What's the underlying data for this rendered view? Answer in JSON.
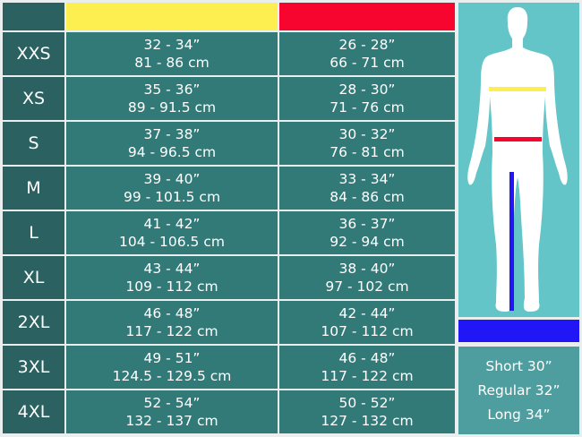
{
  "colors": {
    "chest": "#fcef4f",
    "waist": "#f8052f",
    "inseam": "#2116f5",
    "size_cell": "#2b6160",
    "value_cell": "#327a78",
    "figure_panel": "#63c5c7"
  },
  "rows": [
    {
      "size": "XXS",
      "chest_in": "32 - 34”",
      "chest_cm": "81 - 86 cm",
      "waist_in": "26 - 28”",
      "waist_cm": "66 - 71 cm"
    },
    {
      "size": "XS",
      "chest_in": "35 - 36”",
      "chest_cm": "89 - 91.5 cm",
      "waist_in": "28 - 30”",
      "waist_cm": "71 - 76 cm"
    },
    {
      "size": "S",
      "chest_in": "37 - 38”",
      "chest_cm": "94 - 96.5 cm",
      "waist_in": "30 - 32”",
      "waist_cm": "76 - 81 cm"
    },
    {
      "size": "M",
      "chest_in": "39 - 40”",
      "chest_cm": "99 - 101.5 cm",
      "waist_in": "33 - 34”",
      "waist_cm": "84 - 86 cm"
    },
    {
      "size": "L",
      "chest_in": "41 - 42”",
      "chest_cm": "104 - 106.5 cm",
      "waist_in": "36 - 37”",
      "waist_cm": "92 - 94 cm"
    },
    {
      "size": "XL",
      "chest_in": "43 - 44”",
      "chest_cm": "109 - 112 cm",
      "waist_in": "38 - 40”",
      "waist_cm": "97 - 102 cm"
    },
    {
      "size": "2XL",
      "chest_in": "46 - 48”",
      "chest_cm": "117 - 122 cm",
      "waist_in": "42 - 44”",
      "waist_cm": "107 - 112 cm"
    },
    {
      "size": "3XL",
      "chest_in": "49 - 51”",
      "chest_cm": "124.5 - 129.5 cm",
      "waist_in": "46 - 48”",
      "waist_cm": "117 - 122 cm"
    },
    {
      "size": "4XL",
      "chest_in": "52 - 54”",
      "chest_cm": "132 - 137 cm",
      "waist_in": "50 - 52”",
      "waist_cm": "127 - 132 cm"
    }
  ],
  "leg_lengths": [
    "Short 30”",
    "Regular 32”",
    "Long 34”"
  ]
}
